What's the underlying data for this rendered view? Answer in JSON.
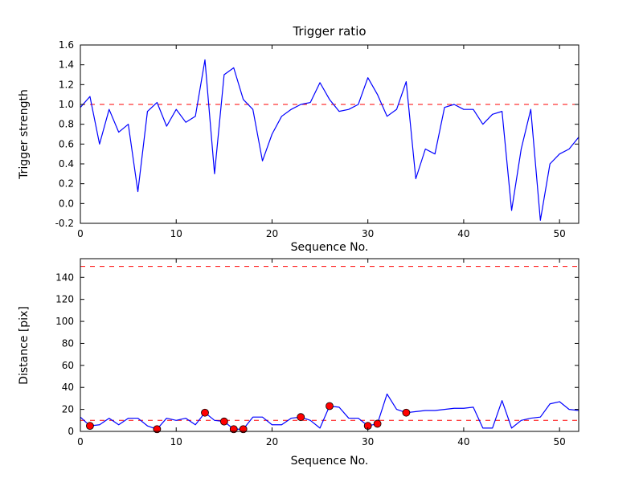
{
  "figure": {
    "background": "#ffffff",
    "line_color": "#0000ff",
    "dash_color": "#ff0000",
    "marker_face": "#ff0000",
    "marker_edge": "#000000",
    "spine_color": "#000000"
  },
  "chart_data": [
    {
      "type": "line",
      "title": "Trigger ratio",
      "xlabel": "Sequence No.",
      "ylabel": "Trigger strength",
      "xlim": [
        0,
        52
      ],
      "ylim": [
        -0.2,
        1.6
      ],
      "xticks": [
        0,
        10,
        20,
        30,
        40,
        50
      ],
      "xtick_labels": [
        "0",
        "10",
        "20",
        "30",
        "40",
        "50"
      ],
      "yticks": [
        -0.2,
        0.0,
        0.2,
        0.4,
        0.6,
        0.8,
        1.0,
        1.2,
        1.4,
        1.6
      ],
      "ytick_labels": [
        "-0.2",
        "0.0",
        "0.2",
        "0.4",
        "0.6",
        "0.8",
        "1.0",
        "1.2",
        "1.4",
        "1.6"
      ],
      "grid": false,
      "legend": null,
      "hlines": [
        {
          "y": 1.0,
          "style": "dashed",
          "color": "#ff0000"
        }
      ],
      "series": [
        {
          "name": "trigger-strength",
          "x": [
            0,
            1,
            2,
            3,
            4,
            5,
            6,
            7,
            8,
            9,
            10,
            11,
            12,
            13,
            14,
            15,
            16,
            17,
            18,
            19,
            20,
            21,
            22,
            23,
            24,
            25,
            26,
            27,
            28,
            29,
            30,
            31,
            32,
            33,
            34,
            35,
            36,
            37,
            38,
            39,
            40,
            41,
            42,
            43,
            44,
            45,
            46,
            47,
            48,
            49,
            50,
            51,
            52
          ],
          "y": [
            0.97,
            1.08,
            0.6,
            0.95,
            0.72,
            0.8,
            0.12,
            0.93,
            1.02,
            0.78,
            0.95,
            0.82,
            0.88,
            1.45,
            0.3,
            1.3,
            1.37,
            1.05,
            0.95,
            0.43,
            0.7,
            0.88,
            0.95,
            1.0,
            1.02,
            1.22,
            1.05,
            0.93,
            0.95,
            1.0,
            1.27,
            1.1,
            0.88,
            0.95,
            1.23,
            0.25,
            0.55,
            0.5,
            0.97,
            1.0,
            0.95,
            0.95,
            0.8,
            0.9,
            0.93,
            -0.07,
            0.55,
            0.95,
            -0.17,
            0.4,
            0.5,
            0.55,
            0.67
          ]
        }
      ]
    },
    {
      "type": "line",
      "title": "",
      "xlabel": "Sequence No.",
      "ylabel": "Distance [pix]",
      "xlim": [
        0,
        52
      ],
      "ylim": [
        0,
        157
      ],
      "xticks": [
        0,
        10,
        20,
        30,
        40,
        50
      ],
      "xtick_labels": [
        "0",
        "10",
        "20",
        "30",
        "40",
        "50"
      ],
      "yticks": [
        0,
        20,
        40,
        60,
        80,
        100,
        120,
        140
      ],
      "ytick_labels": [
        "0",
        "20",
        "40",
        "60",
        "80",
        "100",
        "120",
        "140"
      ],
      "grid": false,
      "legend": null,
      "hlines": [
        {
          "y": 150,
          "style": "dashed",
          "color": "#ff0000"
        },
        {
          "y": 10,
          "style": "dashed",
          "color": "#ff0000"
        }
      ],
      "series": [
        {
          "name": "distance",
          "x": [
            0,
            1,
            2,
            3,
            4,
            5,
            6,
            7,
            8,
            9,
            10,
            11,
            12,
            13,
            14,
            15,
            16,
            17,
            18,
            19,
            20,
            21,
            22,
            23,
            24,
            25,
            26,
            27,
            28,
            29,
            30,
            31,
            32,
            33,
            34,
            35,
            36,
            37,
            38,
            39,
            40,
            41,
            42,
            43,
            44,
            45,
            46,
            47,
            48,
            49,
            50,
            51,
            52
          ],
          "y": [
            13,
            5,
            6,
            12,
            6,
            12,
            12,
            5,
            2,
            12,
            10,
            12,
            6,
            17,
            10,
            9,
            2,
            2,
            13,
            13,
            6,
            6,
            12,
            13,
            10,
            3,
            23,
            22,
            12,
            12,
            5,
            7,
            34,
            20,
            17,
            18,
            19,
            19,
            20,
            21,
            21,
            22,
            3,
            3,
            28,
            3,
            10,
            12,
            13,
            25,
            27,
            20,
            19
          ]
        }
      ],
      "markers": {
        "name": "trigger-events",
        "points": [
          [
            1,
            5
          ],
          [
            8,
            2
          ],
          [
            13,
            17
          ],
          [
            15,
            9
          ],
          [
            16,
            2
          ],
          [
            17,
            2
          ],
          [
            23,
            13
          ],
          [
            26,
            23
          ],
          [
            30,
            5
          ],
          [
            31,
            7
          ],
          [
            34,
            17
          ]
        ]
      }
    }
  ]
}
